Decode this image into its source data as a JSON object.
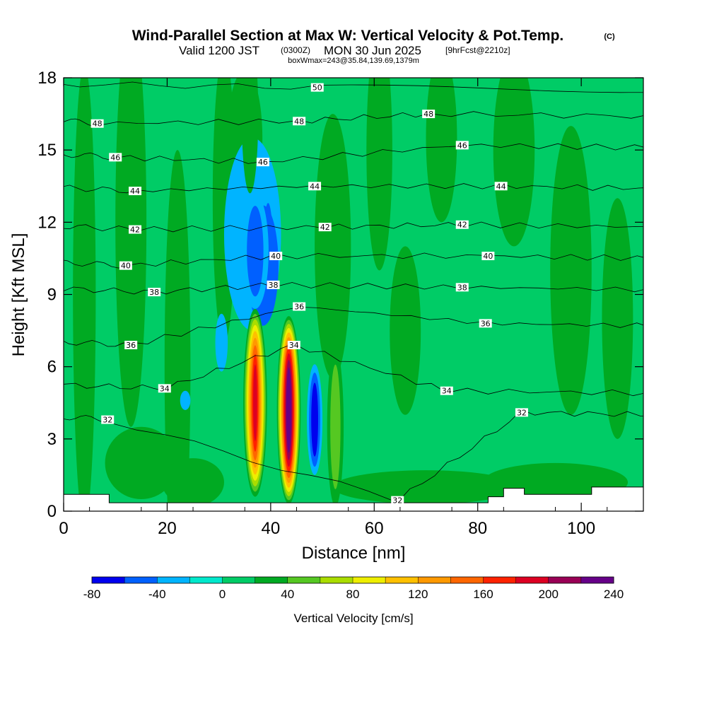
{
  "header": {
    "title": "Wind-Parallel Section at Max W: Vertical Velocity & Pot.Temp.",
    "copyright": "(C)",
    "valid_prefix": "Valid 1200 JST",
    "valid_utc": "(0300Z)",
    "valid_date": "MON 30 Jun 2025",
    "forecast": "[9hrFcst@2210z]",
    "box_info": "boxWmax=243@35.84,139.69,1379m"
  },
  "chart_data": {
    "type": "heatmap",
    "title": "Wind-Parallel Section at Max W: Vertical Velocity & Pot.Temp.",
    "xlabel": "Distance [nm]",
    "ylabel": "Height [Kft MSL]",
    "xlim": [
      0,
      112
    ],
    "ylim": [
      0,
      18
    ],
    "x_ticks": [
      0,
      20,
      40,
      60,
      80,
      100
    ],
    "y_ticks": [
      0,
      3,
      6,
      9,
      12,
      15,
      18
    ],
    "x_tick_labels": [
      "0",
      "20",
      "40",
      "60",
      "80",
      "100"
    ],
    "y_tick_labels": [
      "0",
      "3",
      "6",
      "9",
      "12",
      "15",
      "18"
    ],
    "background_value": 10,
    "colorbar": {
      "label": "Vertical Velocity [cm/s]",
      "min": -80,
      "max": 240,
      "step": 20,
      "tick_values": [
        -80,
        -40,
        0,
        40,
        80,
        120,
        160,
        200,
        240
      ],
      "tick_labels": [
        "-80",
        "-40",
        "0",
        "40",
        "80",
        "120",
        "160",
        "200",
        "240"
      ],
      "colors": [
        "#0000ee",
        "#0060ff",
        "#00b4ff",
        "#00e8cc",
        "#00cc66",
        "#00aa22",
        "#55c822",
        "#aadd00",
        "#eeee00",
        "#ffc000",
        "#ff9900",
        "#ff6600",
        "#ff2200",
        "#dd0022",
        "#990055",
        "#660088"
      ]
    },
    "velocity_features": [
      {
        "x": 37,
        "y": 4.5,
        "peak": 190,
        "comment": "updraft core"
      },
      {
        "x": 43.5,
        "y": 4.2,
        "peak": 243,
        "comment": "updraft core"
      },
      {
        "x": 48.5,
        "y": 3.8,
        "peak": -70,
        "comment": "downdraft"
      },
      {
        "x": 52.5,
        "y": 3.5,
        "peak": 50,
        "comment": "updraft"
      },
      {
        "x": 37,
        "y": 10.8,
        "peak": -55,
        "comment": "downdraft aloft"
      },
      {
        "x": 36,
        "y": 16.5,
        "peak": 35,
        "comment": "updraft aloft"
      }
    ],
    "pot_temp_contours": [
      {
        "level": "32",
        "labels": [
          {
            "x": 8.5,
            "y": 3.8
          },
          {
            "x": 64.5,
            "y": 0.45
          },
          {
            "x": 88.5,
            "y": 4.1
          }
        ]
      },
      {
        "level": "34",
        "labels": [
          {
            "x": 19.5,
            "y": 5.1
          },
          {
            "x": 44.5,
            "y": 6.9
          },
          {
            "x": 74,
            "y": 5.0
          }
        ]
      },
      {
        "level": "36",
        "labels": [
          {
            "x": 13,
            "y": 6.9
          },
          {
            "x": 45.5,
            "y": 8.5
          },
          {
            "x": 81.5,
            "y": 7.8
          }
        ]
      },
      {
        "level": "38",
        "labels": [
          {
            "x": 17.5,
            "y": 9.1
          },
          {
            "x": 40.5,
            "y": 9.4
          },
          {
            "x": 77,
            "y": 9.3
          }
        ]
      },
      {
        "level": "40",
        "labels": [
          {
            "x": 12,
            "y": 10.2
          },
          {
            "x": 41,
            "y": 10.6
          },
          {
            "x": 82,
            "y": 10.6
          }
        ]
      },
      {
        "level": "42",
        "labels": [
          {
            "x": 13.8,
            "y": 11.7
          },
          {
            "x": 50.5,
            "y": 11.8
          },
          {
            "x": 77,
            "y": 11.9
          }
        ]
      },
      {
        "level": "44",
        "labels": [
          {
            "x": 13.8,
            "y": 13.3
          },
          {
            "x": 48.5,
            "y": 13.5
          },
          {
            "x": 84.5,
            "y": 13.5
          }
        ]
      },
      {
        "level": "46",
        "labels": [
          {
            "x": 10,
            "y": 14.7
          },
          {
            "x": 38.5,
            "y": 14.5
          },
          {
            "x": 77,
            "y": 15.2
          }
        ]
      },
      {
        "level": "48",
        "labels": [
          {
            "x": 6.5,
            "y": 16.1
          },
          {
            "x": 45.5,
            "y": 16.2
          },
          {
            "x": 70.5,
            "y": 16.5
          }
        ]
      },
      {
        "level": "50",
        "labels": [
          {
            "x": 49,
            "y": 17.6
          }
        ]
      }
    ]
  }
}
